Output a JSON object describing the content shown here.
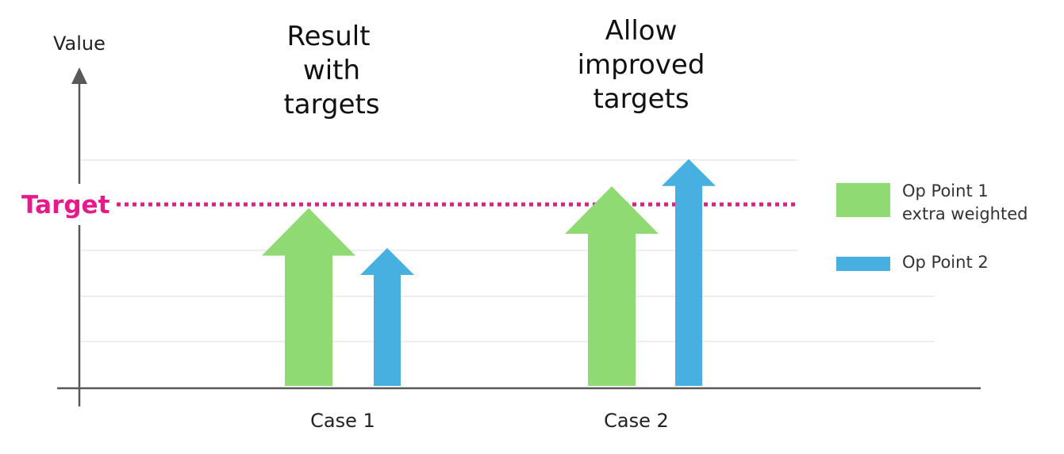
{
  "axis": {
    "ylabel": "Value"
  },
  "target": {
    "label": "Target",
    "color": "#e8198b"
  },
  "annotations": {
    "case1_lines": [
      "Result",
      "with",
      "targets"
    ],
    "case2_lines": [
      "Allow",
      "improved",
      "targets"
    ]
  },
  "cases": [
    "Case 1",
    "Case 2"
  ],
  "legend": {
    "op1_line1": "Op Point 1",
    "op1_line2": "extra weighted",
    "op2": "Op Point 2"
  },
  "colors": {
    "op1": "#8fda72",
    "op2": "#47b0e0",
    "axis": "#595959",
    "grid": "#dcdcdc"
  },
  "chart_data": {
    "type": "bar",
    "categories": [
      "Case 1",
      "Case 2"
    ],
    "series": [
      {
        "name": "Op Point 1 extra weighted",
        "values": [
          0.98,
          1.1
        ]
      },
      {
        "name": "Op Point 2",
        "values": [
          0.76,
          1.25
        ]
      }
    ],
    "target": 1.0,
    "ylabel": "Value",
    "grid": true,
    "legend_position": "right"
  }
}
